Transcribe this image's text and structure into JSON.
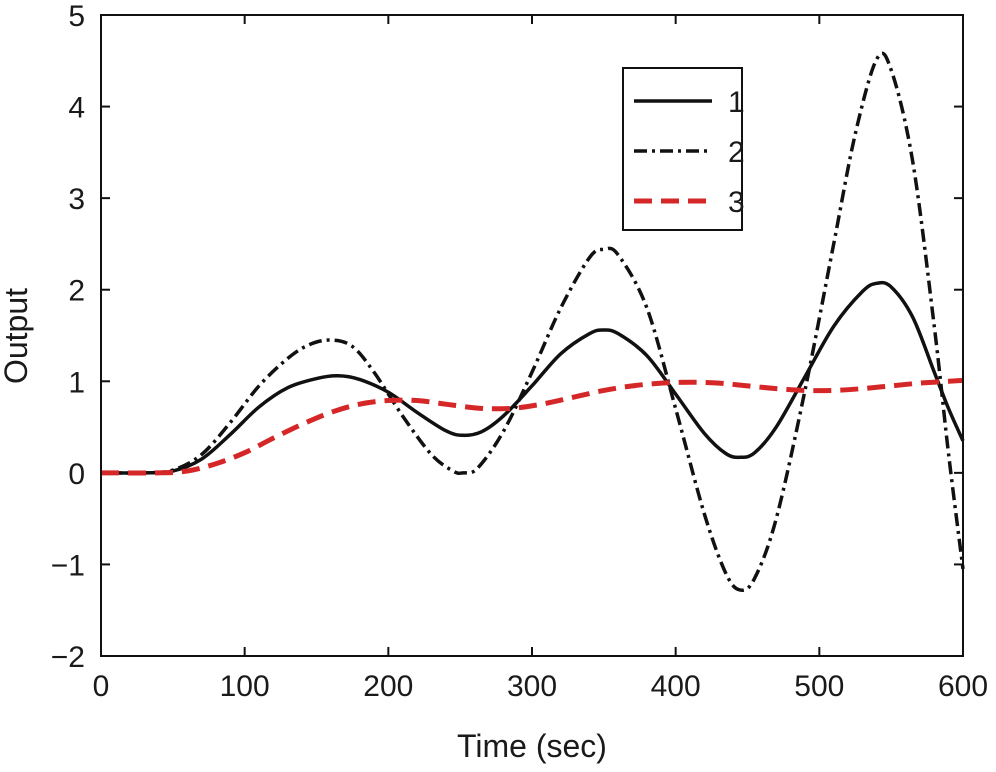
{
  "chart_data": {
    "type": "line",
    "title": "",
    "xlabel": "Time (sec)",
    "ylabel": "Output",
    "xlim": [
      0,
      600
    ],
    "ylim": [
      -2,
      5
    ],
    "xticks": [
      0,
      100,
      200,
      300,
      400,
      500,
      600
    ],
    "yticks": [
      -2,
      -1,
      0,
      1,
      2,
      3,
      4,
      5
    ],
    "xtick_labels": [
      "0",
      "100",
      "200",
      "300",
      "400",
      "500",
      "600"
    ],
    "ytick_labels": [
      "−2",
      "−1",
      "0",
      "1",
      "2",
      "3",
      "4",
      "5"
    ],
    "grid": false,
    "legend_position": "top-right",
    "series": [
      {
        "name": "1",
        "style": "solid",
        "color": "#111111",
        "points": [
          [
            0,
            0
          ],
          [
            30,
            0
          ],
          [
            50,
            0.02
          ],
          [
            70,
            0.15
          ],
          [
            90,
            0.42
          ],
          [
            110,
            0.72
          ],
          [
            130,
            0.93
          ],
          [
            150,
            1.03
          ],
          [
            165,
            1.06
          ],
          [
            180,
            1.02
          ],
          [
            200,
            0.88
          ],
          [
            220,
            0.66
          ],
          [
            240,
            0.46
          ],
          [
            252,
            0.41
          ],
          [
            265,
            0.45
          ],
          [
            280,
            0.62
          ],
          [
            300,
            0.95
          ],
          [
            320,
            1.3
          ],
          [
            340,
            1.52
          ],
          [
            350,
            1.56
          ],
          [
            360,
            1.52
          ],
          [
            380,
            1.28
          ],
          [
            400,
            0.86
          ],
          [
            420,
            0.43
          ],
          [
            435,
            0.21
          ],
          [
            445,
            0.17
          ],
          [
            455,
            0.22
          ],
          [
            470,
            0.5
          ],
          [
            490,
            1.05
          ],
          [
            510,
            1.6
          ],
          [
            530,
            1.98
          ],
          [
            540,
            2.07
          ],
          [
            550,
            2.03
          ],
          [
            565,
            1.7
          ],
          [
            580,
            1.1
          ],
          [
            590,
            0.7
          ],
          [
            600,
            0.35
          ]
        ]
      },
      {
        "name": "2",
        "style": "dash-dot",
        "color": "#111111",
        "points": [
          [
            0,
            0
          ],
          [
            30,
            0
          ],
          [
            50,
            0.03
          ],
          [
            70,
            0.2
          ],
          [
            90,
            0.55
          ],
          [
            110,
            0.95
          ],
          [
            130,
            1.25
          ],
          [
            145,
            1.4
          ],
          [
            160,
            1.45
          ],
          [
            175,
            1.38
          ],
          [
            190,
            1.1
          ],
          [
            210,
            0.62
          ],
          [
            230,
            0.2
          ],
          [
            245,
            0.02
          ],
          [
            252,
            0
          ],
          [
            262,
            0.05
          ],
          [
            280,
            0.45
          ],
          [
            300,
            1.1
          ],
          [
            320,
            1.8
          ],
          [
            340,
            2.35
          ],
          [
            350,
            2.44
          ],
          [
            360,
            2.38
          ],
          [
            380,
            1.8
          ],
          [
            400,
            0.7
          ],
          [
            420,
            -0.45
          ],
          [
            435,
            -1.1
          ],
          [
            445,
            -1.28
          ],
          [
            455,
            -1.15
          ],
          [
            470,
            -0.5
          ],
          [
            490,
            0.9
          ],
          [
            510,
            2.5
          ],
          [
            525,
            3.7
          ],
          [
            540,
            4.52
          ],
          [
            550,
            4.4
          ],
          [
            565,
            3.4
          ],
          [
            580,
            1.6
          ],
          [
            590,
            0.2
          ],
          [
            600,
            -1.05
          ]
        ]
      },
      {
        "name": "3",
        "style": "dashed",
        "color": "#d62728",
        "points": [
          [
            0,
            0
          ],
          [
            40,
            0
          ],
          [
            60,
            0.02
          ],
          [
            80,
            0.1
          ],
          [
            100,
            0.22
          ],
          [
            120,
            0.38
          ],
          [
            140,
            0.53
          ],
          [
            160,
            0.66
          ],
          [
            180,
            0.75
          ],
          [
            200,
            0.79
          ],
          [
            220,
            0.79
          ],
          [
            240,
            0.75
          ],
          [
            260,
            0.71
          ],
          [
            275,
            0.7
          ],
          [
            290,
            0.71
          ],
          [
            310,
            0.76
          ],
          [
            330,
            0.83
          ],
          [
            350,
            0.9
          ],
          [
            370,
            0.95
          ],
          [
            390,
            0.98
          ],
          [
            410,
            0.99
          ],
          [
            430,
            0.98
          ],
          [
            450,
            0.95
          ],
          [
            470,
            0.92
          ],
          [
            490,
            0.9
          ],
          [
            510,
            0.9
          ],
          [
            530,
            0.92
          ],
          [
            550,
            0.95
          ],
          [
            570,
            0.98
          ],
          [
            590,
            1.0
          ],
          [
            600,
            1.01
          ]
        ]
      }
    ]
  }
}
